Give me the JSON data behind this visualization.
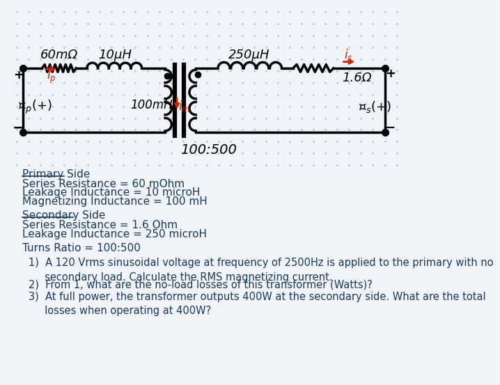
{
  "bg_color": "#f0f4f8",
  "dot_color": "#c0ccd8",
  "text_color": "#1a3a5c",
  "red_color": "#cc2200",
  "primary_side_label": "Primary Side",
  "primary_params": [
    "Series Resistance = 60 mOhm",
    "Leakage Inductance = 10 microH",
    "Magnetizing Inductance = 100 mH"
  ],
  "secondary_side_label": "Secondary Side",
  "secondary_params": [
    "Series Resistance = 1.6 Ohm",
    "Leakage Inductance = 250 microH"
  ],
  "turns_ratio": "Turns Ratio = 100:500",
  "questions": [
    "1)  A 120 Vrms sinusoidal voltage at frequency of 2500Hz is applied to the primary with no\n     secondary load. Calculate the RMS magnetizing current.",
    "2)  From 1, what are the no-load losses of this transformer (Watts)?",
    "3)  At full power, the transformer outputs 400W at the secondary side. What are the total\n     losses when operating at 400W?"
  ],
  "label_60mR": "60mΩ",
  "label_10uH": "10μH",
  "label_250uH": "250μH",
  "label_1p6R": "1.6Ω",
  "label_100mH": "100mH",
  "label_turns": "100:500"
}
